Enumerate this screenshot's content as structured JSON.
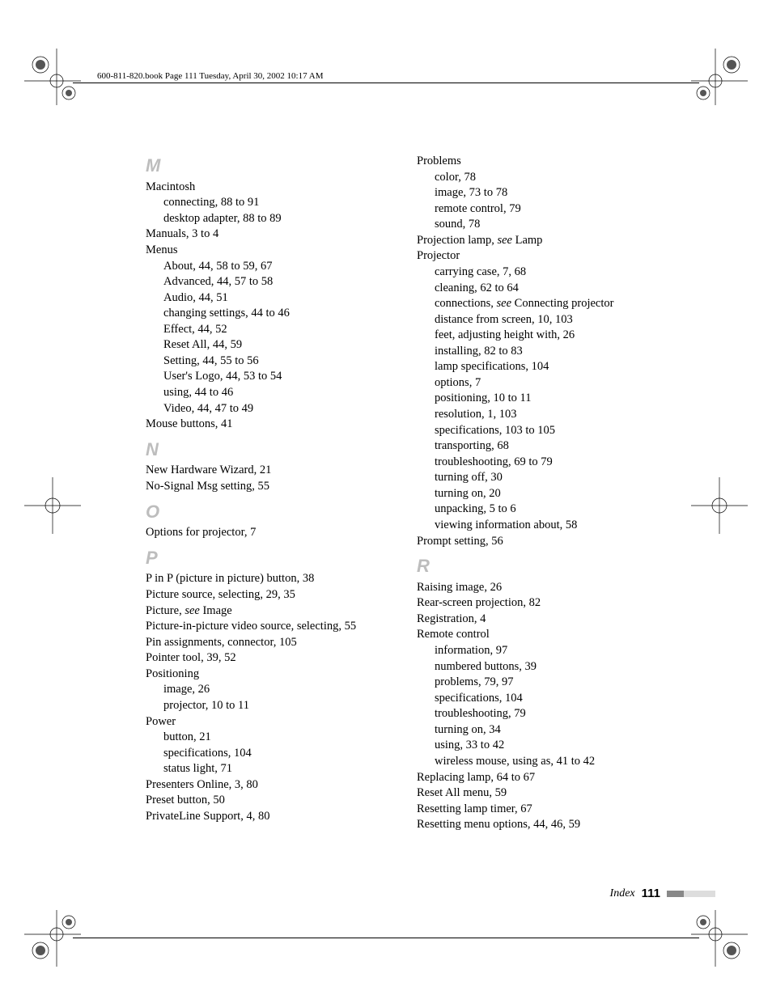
{
  "header": "600-811-820.book  Page 111  Tuesday, April 30, 2002  10:17 AM",
  "footer": {
    "label": "Index",
    "page": "111"
  },
  "colors": {
    "section_letter": "#bdbdbd",
    "text": "#000000",
    "background": "#ffffff"
  },
  "left": {
    "M": {
      "letter": "M",
      "lines": [
        {
          "t": "Macintosh"
        },
        {
          "t": "connecting, 88 to 91",
          "sub": true
        },
        {
          "t": "desktop adapter, 88 to 89",
          "sub": true
        },
        {
          "t": "Manuals, 3 to 4"
        },
        {
          "t": "Menus"
        },
        {
          "t": "About, 44, 58 to 59, 67",
          "sub": true
        },
        {
          "t": "Advanced, 44, 57 to 58",
          "sub": true
        },
        {
          "t": "Audio, 44, 51",
          "sub": true
        },
        {
          "t": "changing settings, 44 to 46",
          "sub": true
        },
        {
          "t": "Effect, 44, 52",
          "sub": true
        },
        {
          "t": "Reset All, 44, 59",
          "sub": true
        },
        {
          "t": "Setting, 44, 55 to 56",
          "sub": true
        },
        {
          "t": "User's Logo, 44, 53 to 54",
          "sub": true
        },
        {
          "t": "using, 44 to 46",
          "sub": true
        },
        {
          "t": "Video, 44, 47 to 49",
          "sub": true
        },
        {
          "t": "Mouse buttons, 41"
        }
      ]
    },
    "N": {
      "letter": "N",
      "lines": [
        {
          "t": "New Hardware Wizard, 21"
        },
        {
          "t": "No-Signal Msg setting, 55"
        }
      ]
    },
    "O": {
      "letter": "O",
      "lines": [
        {
          "t": "Options for projector, 7"
        }
      ]
    },
    "P": {
      "letter": "P",
      "lines": [
        {
          "t": "P in P (picture in picture) button, 38"
        },
        {
          "t": "Picture source, selecting, 29, 35"
        },
        {
          "pre": "Picture, ",
          "it": "see",
          "post": " Image"
        },
        {
          "t": "Picture-in-picture video source, selecting, 55"
        },
        {
          "t": "Pin assignments, connector, 105"
        },
        {
          "t": "Pointer tool, 39, 52"
        },
        {
          "t": "Positioning"
        },
        {
          "t": "image, 26",
          "sub": true
        },
        {
          "t": "projector, 10 to 11",
          "sub": true
        },
        {
          "t": "Power"
        },
        {
          "t": "button, 21",
          "sub": true
        },
        {
          "t": "specifications, 104",
          "sub": true
        },
        {
          "t": "status light, 71",
          "sub": true
        },
        {
          "t": "Presenters Online, 3, 80"
        },
        {
          "t": "Preset button, 50"
        },
        {
          "t": "PrivateLine Support, 4, 80"
        }
      ]
    }
  },
  "right": {
    "Pcont": {
      "lines": [
        {
          "t": "Problems"
        },
        {
          "t": "color, 78",
          "sub": true
        },
        {
          "t": "image, 73 to 78",
          "sub": true
        },
        {
          "t": "remote control, 79",
          "sub": true
        },
        {
          "t": "sound, 78",
          "sub": true
        },
        {
          "pre": "Projection lamp, ",
          "it": "see",
          "post": " Lamp"
        },
        {
          "t": "Projector"
        },
        {
          "t": "carrying case, 7, 68",
          "sub": true
        },
        {
          "t": "cleaning, 62 to 64",
          "sub": true
        },
        {
          "pre": "connections, ",
          "it": "see",
          "post": " Connecting projector",
          "sub": true
        },
        {
          "t": "distance from screen, 10, 103",
          "sub": true
        },
        {
          "t": "feet, adjusting height with, 26",
          "sub": true
        },
        {
          "t": "installing, 82 to 83",
          "sub": true
        },
        {
          "t": "lamp specifications, 104",
          "sub": true
        },
        {
          "t": "options, 7",
          "sub": true
        },
        {
          "t": "positioning, 10 to 11",
          "sub": true
        },
        {
          "t": "resolution, 1, 103",
          "sub": true
        },
        {
          "t": "specifications, 103 to 105",
          "sub": true
        },
        {
          "t": "transporting, 68",
          "sub": true
        },
        {
          "t": "troubleshooting, 69 to 79",
          "sub": true
        },
        {
          "t": "turning off, 30",
          "sub": true
        },
        {
          "t": "turning on, 20",
          "sub": true
        },
        {
          "t": "unpacking, 5 to 6",
          "sub": true
        },
        {
          "t": "viewing information about, 58",
          "sub": true
        },
        {
          "t": "Prompt setting, 56"
        }
      ]
    },
    "R": {
      "letter": "R",
      "lines": [
        {
          "t": "Raising image, 26"
        },
        {
          "t": "Rear-screen projection, 82"
        },
        {
          "t": "Registration, 4"
        },
        {
          "t": "Remote control"
        },
        {
          "t": "information, 97",
          "sub": true
        },
        {
          "t": "numbered buttons, 39",
          "sub": true
        },
        {
          "t": "problems, 79, 97",
          "sub": true
        },
        {
          "t": "specifications, 104",
          "sub": true
        },
        {
          "t": "troubleshooting, 79",
          "sub": true
        },
        {
          "t": "turning on, 34",
          "sub": true
        },
        {
          "t": "using, 33 to 42",
          "sub": true
        },
        {
          "t": "wireless mouse, using as, 41 to 42",
          "sub": true
        },
        {
          "t": "Replacing lamp, 64 to 67"
        },
        {
          "t": "Reset All menu, 59"
        },
        {
          "t": "Resetting lamp timer, 67"
        },
        {
          "t": "Resetting menu options, 44, 46, 59"
        }
      ]
    }
  }
}
